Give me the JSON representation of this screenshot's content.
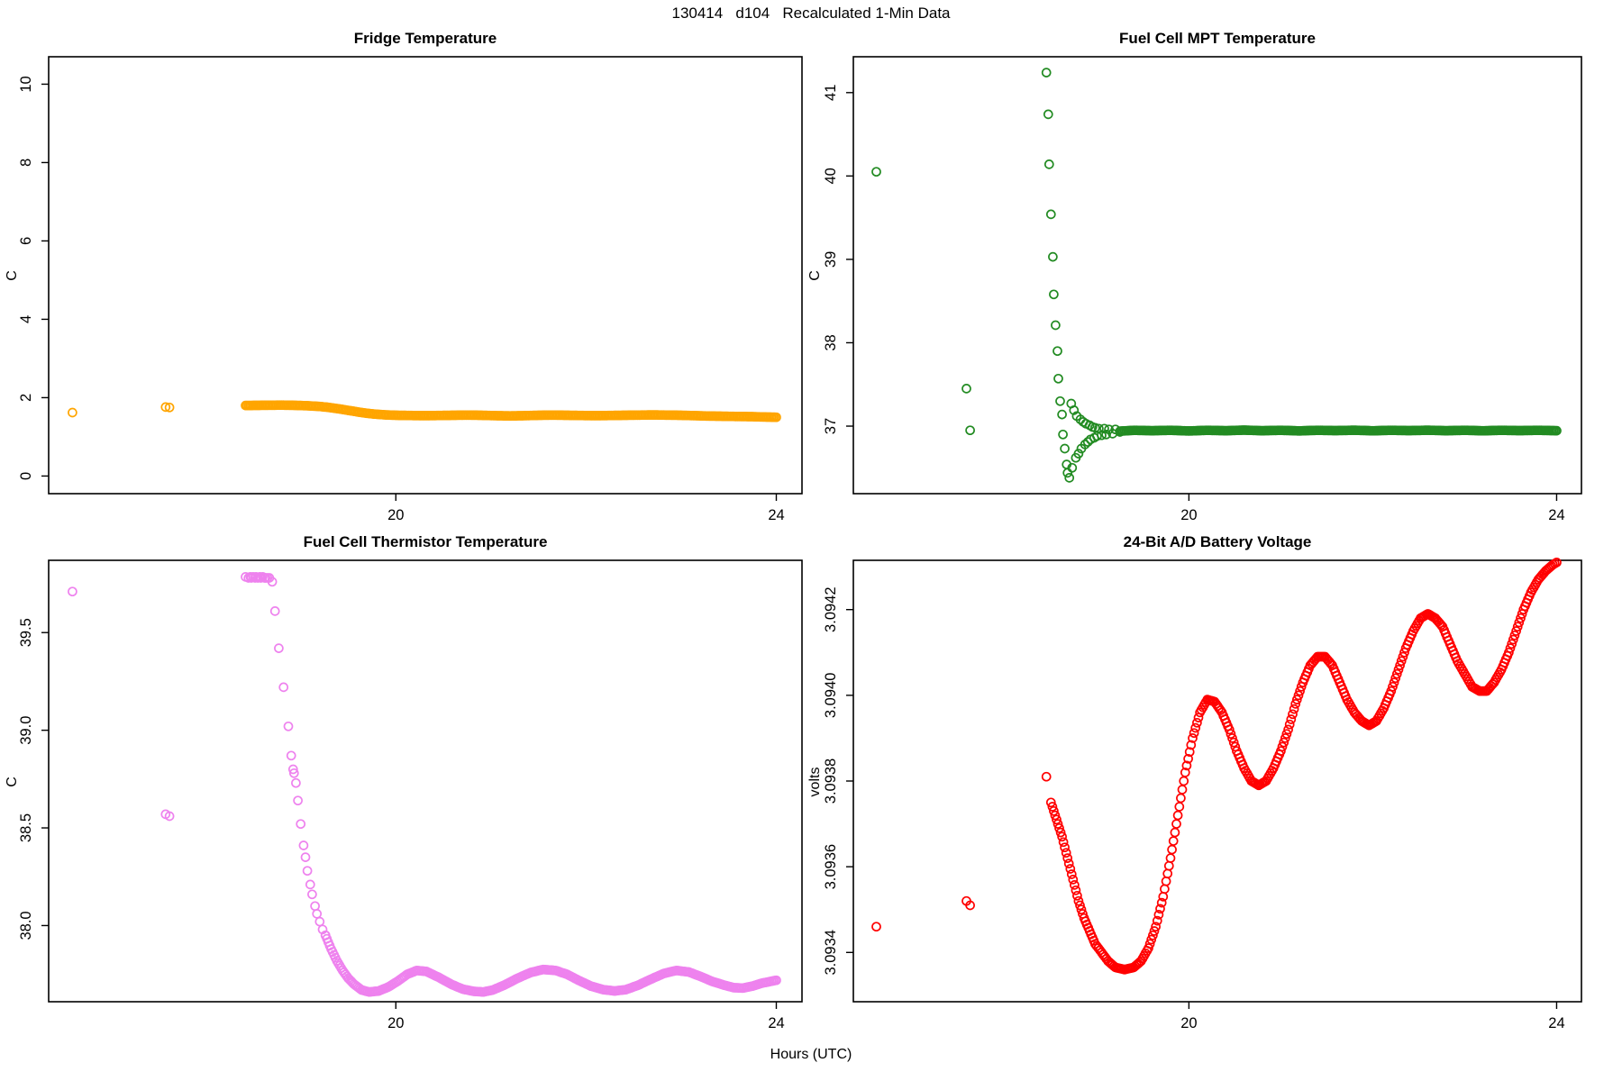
{
  "main_title": "130414   d104   Recalculated 1-Min Data",
  "x_axis_label": "Hours (UTC)",
  "chart_data": [
    {
      "type": "scatter",
      "title": "Fridge Temperature",
      "ylabel": "C",
      "color": "#FFA500",
      "marker": "open-circle",
      "xlim": [
        16.35,
        24.27
      ],
      "ylim": [
        -0.45,
        10.7
      ],
      "xticks": [
        {
          "v": 20,
          "label": "20"
        },
        {
          "v": 24,
          "label": "24"
        }
      ],
      "yticks": [
        {
          "v": 0,
          "label": "0"
        },
        {
          "v": 2,
          "label": "2"
        },
        {
          "v": 4,
          "label": "4"
        },
        {
          "v": 6,
          "label": "6"
        },
        {
          "v": 8,
          "label": "8"
        },
        {
          "v": 10,
          "label": "10"
        }
      ],
      "sample_interval_hours": 0.016667,
      "isolated_points": [
        [
          16.6,
          1.62
        ],
        [
          17.58,
          1.76
        ],
        [
          17.62,
          1.75
        ]
      ],
      "discrete_points": [],
      "dense_path": [
        [
          18.42,
          1.8
        ],
        [
          18.6,
          1.805
        ],
        [
          18.8,
          1.81
        ],
        [
          19.0,
          1.8
        ],
        [
          19.1,
          1.79
        ],
        [
          19.2,
          1.775
        ],
        [
          19.3,
          1.75
        ],
        [
          19.4,
          1.715
        ],
        [
          19.5,
          1.675
        ],
        [
          19.6,
          1.635
        ],
        [
          19.7,
          1.6
        ],
        [
          19.8,
          1.575
        ],
        [
          19.9,
          1.56
        ],
        [
          20.0,
          1.55
        ],
        [
          20.15,
          1.545
        ],
        [
          20.3,
          1.54
        ],
        [
          20.45,
          1.545
        ],
        [
          20.6,
          1.55
        ],
        [
          20.75,
          1.555
        ],
        [
          20.9,
          1.55
        ],
        [
          21.05,
          1.54
        ],
        [
          21.2,
          1.535
        ],
        [
          21.35,
          1.54
        ],
        [
          21.5,
          1.55
        ],
        [
          21.65,
          1.555
        ],
        [
          21.8,
          1.55
        ],
        [
          21.95,
          1.545
        ],
        [
          22.1,
          1.54
        ],
        [
          22.25,
          1.545
        ],
        [
          22.4,
          1.55
        ],
        [
          22.55,
          1.555
        ],
        [
          22.7,
          1.56
        ],
        [
          22.85,
          1.555
        ],
        [
          23.0,
          1.55
        ],
        [
          23.15,
          1.54
        ],
        [
          23.3,
          1.53
        ],
        [
          23.45,
          1.525
        ],
        [
          23.6,
          1.52
        ],
        [
          23.75,
          1.515
        ],
        [
          23.9,
          1.505
        ],
        [
          24.0,
          1.5
        ]
      ]
    },
    {
      "type": "scatter",
      "title": "Fuel Cell MPT Temperature",
      "ylabel": "C",
      "color": "#228B22",
      "marker": "open-circle",
      "xlim": [
        16.35,
        24.27
      ],
      "ylim": [
        36.19,
        41.43
      ],
      "xticks": [
        {
          "v": 20,
          "label": "20"
        },
        {
          "v": 24,
          "label": "24"
        }
      ],
      "yticks": [
        {
          "v": 37,
          "label": "37"
        },
        {
          "v": 38,
          "label": "38"
        },
        {
          "v": 39,
          "label": "39"
        },
        {
          "v": 40,
          "label": "40"
        },
        {
          "v": 41,
          "label": "41"
        }
      ],
      "sample_interval_hours": 0.016667,
      "isolated_points": [
        [
          16.6,
          40.05
        ],
        [
          17.58,
          37.45
        ],
        [
          17.62,
          36.95
        ]
      ],
      "discrete_points": [
        [
          18.45,
          41.24
        ],
        [
          18.47,
          40.74
        ],
        [
          18.48,
          40.14
        ],
        [
          18.5,
          39.54
        ],
        [
          18.52,
          39.03
        ],
        [
          18.53,
          38.58
        ],
        [
          18.55,
          38.21
        ],
        [
          18.57,
          37.9
        ],
        [
          18.58,
          37.57
        ],
        [
          18.6,
          37.3
        ],
        [
          18.62,
          37.14
        ],
        [
          18.63,
          36.9
        ],
        [
          18.65,
          36.73
        ],
        [
          18.67,
          36.54
        ],
        [
          18.68,
          36.44
        ],
        [
          18.7,
          36.38
        ],
        [
          18.72,
          37.27
        ],
        [
          18.73,
          36.5
        ],
        [
          18.75,
          37.19
        ],
        [
          18.77,
          36.62
        ],
        [
          18.78,
          37.12
        ],
        [
          18.8,
          36.67
        ],
        [
          18.82,
          37.08
        ],
        [
          18.83,
          36.73
        ],
        [
          18.85,
          37.05
        ],
        [
          18.87,
          36.78
        ],
        [
          18.88,
          37.03
        ],
        [
          18.9,
          36.81
        ],
        [
          18.92,
          37.01
        ],
        [
          18.93,
          36.84
        ],
        [
          18.95,
          36.99
        ],
        [
          18.97,
          36.86
        ],
        [
          18.98,
          36.98
        ],
        [
          19.0,
          36.88
        ],
        [
          19.02,
          36.97
        ],
        [
          19.05,
          36.89
        ],
        [
          19.08,
          36.97
        ],
        [
          19.1,
          36.9
        ],
        [
          19.13,
          36.96
        ],
        [
          19.17,
          36.91
        ],
        [
          19.2,
          36.96
        ],
        [
          19.25,
          36.93
        ]
      ],
      "dense_path": [
        [
          19.25,
          36.94
        ],
        [
          19.4,
          36.95
        ],
        [
          19.6,
          36.945
        ],
        [
          19.8,
          36.95
        ],
        [
          20.0,
          36.942
        ],
        [
          20.2,
          36.95
        ],
        [
          20.4,
          36.945
        ],
        [
          20.6,
          36.952
        ],
        [
          20.8,
          36.945
        ],
        [
          21.0,
          36.95
        ],
        [
          21.2,
          36.943
        ],
        [
          21.4,
          36.95
        ],
        [
          21.6,
          36.946
        ],
        [
          21.8,
          36.951
        ],
        [
          22.0,
          36.944
        ],
        [
          22.2,
          36.95
        ],
        [
          22.4,
          36.946
        ],
        [
          22.6,
          36.951
        ],
        [
          22.8,
          36.945
        ],
        [
          23.0,
          36.95
        ],
        [
          23.2,
          36.944
        ],
        [
          23.4,
          36.95
        ],
        [
          23.6,
          36.946
        ],
        [
          23.8,
          36.95
        ],
        [
          24.0,
          36.945
        ]
      ]
    },
    {
      "type": "scatter",
      "title": "Fuel Cell Thermistor Temperature",
      "ylabel": "C",
      "color": "#EE82EE",
      "marker": "open-circle",
      "xlim": [
        16.35,
        24.27
      ],
      "ylim": [
        37.61,
        39.87
      ],
      "xticks": [
        {
          "v": 20,
          "label": "20"
        },
        {
          "v": 24,
          "label": "24"
        }
      ],
      "yticks": [
        {
          "v": 38.0,
          "label": "38.0"
        },
        {
          "v": 38.5,
          "label": "38.5"
        },
        {
          "v": 39.0,
          "label": "39.0"
        },
        {
          "v": 39.5,
          "label": "39.5"
        }
      ],
      "sample_interval_hours": 0.016667,
      "isolated_points": [
        [
          16.6,
          39.71
        ],
        [
          17.58,
          38.57
        ],
        [
          17.62,
          38.56
        ]
      ],
      "discrete_points": [
        [
          18.42,
          39.785
        ],
        [
          18.45,
          39.78
        ],
        [
          18.47,
          39.785
        ],
        [
          18.48,
          39.78
        ],
        [
          18.5,
          39.785
        ],
        [
          18.52,
          39.78
        ],
        [
          18.53,
          39.785
        ],
        [
          18.55,
          39.78
        ],
        [
          18.57,
          39.785
        ],
        [
          18.58,
          39.78
        ],
        [
          18.6,
          39.785
        ],
        [
          18.62,
          39.78
        ],
        [
          18.63,
          39.78
        ],
        [
          18.65,
          39.78
        ],
        [
          18.67,
          39.78
        ],
        [
          18.7,
          39.76
        ],
        [
          18.73,
          39.61
        ],
        [
          18.77,
          39.42
        ],
        [
          18.82,
          39.22
        ],
        [
          18.87,
          39.02
        ],
        [
          18.9,
          38.87
        ],
        [
          18.92,
          38.8
        ],
        [
          18.93,
          38.78
        ],
        [
          18.95,
          38.73
        ],
        [
          18.97,
          38.64
        ],
        [
          19.0,
          38.52
        ],
        [
          19.03,
          38.41
        ],
        [
          19.05,
          38.35
        ],
        [
          19.07,
          38.28
        ],
        [
          19.1,
          38.21
        ],
        [
          19.12,
          38.16
        ],
        [
          19.15,
          38.1
        ],
        [
          19.17,
          38.06
        ],
        [
          19.2,
          38.02
        ],
        [
          19.23,
          37.98
        ],
        [
          19.26,
          37.95
        ]
      ],
      "dense_path": [
        [
          19.26,
          37.95
        ],
        [
          19.32,
          37.88
        ],
        [
          19.38,
          37.82
        ],
        [
          19.44,
          37.77
        ],
        [
          19.5,
          37.73
        ],
        [
          19.56,
          37.7
        ],
        [
          19.64,
          37.67
        ],
        [
          19.72,
          37.66
        ],
        [
          19.82,
          37.665
        ],
        [
          19.92,
          37.685
        ],
        [
          20.02,
          37.715
        ],
        [
          20.12,
          37.75
        ],
        [
          20.22,
          37.77
        ],
        [
          20.32,
          37.765
        ],
        [
          20.45,
          37.735
        ],
        [
          20.58,
          37.7
        ],
        [
          20.7,
          37.675
        ],
        [
          20.82,
          37.663
        ],
        [
          20.92,
          37.66
        ],
        [
          21.02,
          37.67
        ],
        [
          21.14,
          37.695
        ],
        [
          21.28,
          37.73
        ],
        [
          21.42,
          37.76
        ],
        [
          21.55,
          37.775
        ],
        [
          21.68,
          37.77
        ],
        [
          21.8,
          37.75
        ],
        [
          21.92,
          37.72
        ],
        [
          22.05,
          37.69
        ],
        [
          22.18,
          37.672
        ],
        [
          22.3,
          37.665
        ],
        [
          22.42,
          37.672
        ],
        [
          22.55,
          37.695
        ],
        [
          22.68,
          37.725
        ],
        [
          22.82,
          37.755
        ],
        [
          22.95,
          37.77
        ],
        [
          23.08,
          37.762
        ],
        [
          23.2,
          37.74
        ],
        [
          23.32,
          37.715
        ],
        [
          23.45,
          37.695
        ],
        [
          23.55,
          37.682
        ],
        [
          23.65,
          37.68
        ],
        [
          23.75,
          37.69
        ],
        [
          23.85,
          37.705
        ],
        [
          23.95,
          37.715
        ],
        [
          24.0,
          37.72
        ]
      ]
    },
    {
      "type": "scatter",
      "title": "24-Bit A/D Battery Voltage",
      "ylabel": "volts",
      "color": "#FF0000",
      "marker": "open-circle",
      "xlim": [
        16.35,
        24.27
      ],
      "ylim": [
        3.093285,
        3.094315
      ],
      "xticks": [
        {
          "v": 20,
          "label": "20"
        },
        {
          "v": 24,
          "label": "24"
        }
      ],
      "yticks": [
        {
          "v": 3.0934,
          "label": "3.0934"
        },
        {
          "v": 3.0936,
          "label": "3.0936"
        },
        {
          "v": 3.0938,
          "label": "3.0938"
        },
        {
          "v": 3.094,
          "label": "3.0940"
        },
        {
          "v": 3.0942,
          "label": "3.0942"
        }
      ],
      "sample_interval_hours": 0.016667,
      "isolated_points": [
        [
          16.6,
          3.09346
        ],
        [
          17.58,
          3.09352
        ],
        [
          17.62,
          3.09351
        ],
        [
          18.45,
          3.09381
        ]
      ],
      "discrete_points": [],
      "dense_path": [
        [
          18.5,
          3.09375
        ],
        [
          18.56,
          3.09371
        ],
        [
          18.62,
          3.09367
        ],
        [
          18.68,
          3.09362
        ],
        [
          18.74,
          3.09357
        ],
        [
          18.8,
          3.09352
        ],
        [
          18.86,
          3.09348
        ],
        [
          18.92,
          3.09345
        ],
        [
          18.98,
          3.09342
        ],
        [
          19.05,
          3.0934
        ],
        [
          19.12,
          3.09338
        ],
        [
          19.2,
          3.093365
        ],
        [
          19.3,
          3.09336
        ],
        [
          19.4,
          3.093365
        ],
        [
          19.48,
          3.09338
        ],
        [
          19.56,
          3.09341
        ],
        [
          19.64,
          3.09346
        ],
        [
          19.72,
          3.09353
        ],
        [
          19.8,
          3.09362
        ],
        [
          19.88,
          3.09372
        ],
        [
          19.96,
          3.09382
        ],
        [
          20.04,
          3.0939
        ],
        [
          20.12,
          3.09396
        ],
        [
          20.2,
          3.09399
        ],
        [
          20.28,
          3.093985
        ],
        [
          20.36,
          3.09396
        ],
        [
          20.44,
          3.09392
        ],
        [
          20.52,
          3.09387
        ],
        [
          20.6,
          3.09383
        ],
        [
          20.68,
          3.0938
        ],
        [
          20.76,
          3.09379
        ],
        [
          20.84,
          3.0938
        ],
        [
          20.92,
          3.09383
        ],
        [
          21.0,
          3.09387
        ],
        [
          21.08,
          3.09392
        ],
        [
          21.16,
          3.09398
        ],
        [
          21.24,
          3.09403
        ],
        [
          21.32,
          3.09407
        ],
        [
          21.4,
          3.09409
        ],
        [
          21.48,
          3.09409
        ],
        [
          21.56,
          3.09407
        ],
        [
          21.64,
          3.09403
        ],
        [
          21.72,
          3.09399
        ],
        [
          21.8,
          3.09396
        ],
        [
          21.88,
          3.09394
        ],
        [
          21.96,
          3.09393
        ],
        [
          22.04,
          3.09394
        ],
        [
          22.12,
          3.09397
        ],
        [
          22.2,
          3.09401
        ],
        [
          22.28,
          3.09406
        ],
        [
          22.36,
          3.09411
        ],
        [
          22.44,
          3.09415
        ],
        [
          22.52,
          3.09418
        ],
        [
          22.6,
          3.09419
        ],
        [
          22.68,
          3.09418
        ],
        [
          22.76,
          3.09416
        ],
        [
          22.84,
          3.09412
        ],
        [
          22.92,
          3.09408
        ],
        [
          23.0,
          3.09405
        ],
        [
          23.08,
          3.09402
        ],
        [
          23.16,
          3.09401
        ],
        [
          23.24,
          3.09401
        ],
        [
          23.32,
          3.09403
        ],
        [
          23.4,
          3.09406
        ],
        [
          23.48,
          3.0941
        ],
        [
          23.56,
          3.09415
        ],
        [
          23.64,
          3.0942
        ],
        [
          23.72,
          3.09424
        ],
        [
          23.8,
          3.09427
        ],
        [
          23.88,
          3.09429
        ],
        [
          23.96,
          3.094305
        ],
        [
          24.0,
          3.09431
        ]
      ]
    }
  ]
}
